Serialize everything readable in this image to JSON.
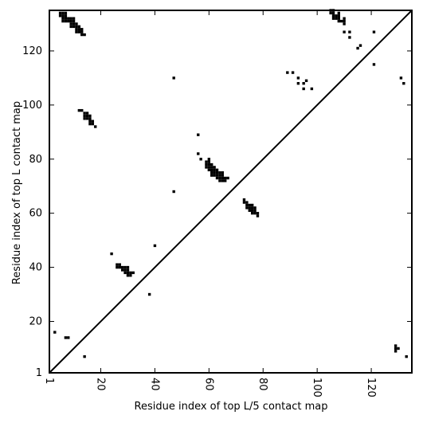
{
  "chart_data": {
    "type": "heatmap",
    "title": "",
    "xlabel": "Residue index of top L/5 contact map",
    "ylabel": "Residue index of top L contact map",
    "xlim": [
      1,
      135
    ],
    "ylim": [
      1,
      135
    ],
    "xticks": [
      1,
      20,
      40,
      60,
      80,
      100,
      120
    ],
    "yticks": [
      1,
      20,
      40,
      60,
      80,
      100,
      120
    ],
    "diagonal": true,
    "colors": {
      "contact": "#000000",
      "background": "#ffffff",
      "axis": "#000000"
    },
    "upper_contacts": [
      [
        5,
        134
      ],
      [
        6,
        134
      ],
      [
        7,
        134
      ],
      [
        5,
        133
      ],
      [
        6,
        133
      ],
      [
        7,
        133
      ],
      [
        6,
        132
      ],
      [
        7,
        132
      ],
      [
        8,
        132
      ],
      [
        9,
        132
      ],
      [
        10,
        132
      ],
      [
        6,
        131
      ],
      [
        7,
        131
      ],
      [
        8,
        131
      ],
      [
        9,
        131
      ],
      [
        10,
        131
      ],
      [
        9,
        130
      ],
      [
        10,
        130
      ],
      [
        11,
        130
      ],
      [
        9,
        129
      ],
      [
        10,
        129
      ],
      [
        11,
        129
      ],
      [
        12,
        129
      ],
      [
        11,
        128
      ],
      [
        12,
        128
      ],
      [
        13,
        128
      ],
      [
        11,
        127
      ],
      [
        12,
        127
      ],
      [
        13,
        127
      ],
      [
        13,
        126
      ],
      [
        14,
        126
      ],
      [
        47,
        110
      ],
      [
        12,
        98
      ],
      [
        13,
        98
      ],
      [
        14,
        97
      ],
      [
        15,
        97
      ],
      [
        14,
        96
      ],
      [
        15,
        96
      ],
      [
        16,
        96
      ],
      [
        14,
        95
      ],
      [
        15,
        95
      ],
      [
        16,
        95
      ],
      [
        16,
        94
      ],
      [
        17,
        94
      ],
      [
        16,
        93
      ],
      [
        17,
        93
      ],
      [
        18,
        92
      ],
      [
        56,
        89
      ],
      [
        56,
        82
      ],
      [
        57,
        80
      ],
      [
        60,
        80
      ],
      [
        59,
        79
      ],
      [
        60,
        79
      ],
      [
        59,
        78
      ],
      [
        60,
        78
      ],
      [
        61,
        78
      ],
      [
        59,
        77
      ],
      [
        60,
        77
      ],
      [
        61,
        77
      ],
      [
        62,
        77
      ],
      [
        60,
        76
      ],
      [
        61,
        76
      ],
      [
        62,
        76
      ],
      [
        63,
        76
      ],
      [
        61,
        75
      ],
      [
        62,
        75
      ],
      [
        63,
        75
      ],
      [
        64,
        75
      ],
      [
        65,
        75
      ],
      [
        61,
        74
      ],
      [
        62,
        74
      ],
      [
        63,
        74
      ],
      [
        64,
        74
      ],
      [
        65,
        74
      ],
      [
        63,
        73
      ],
      [
        64,
        73
      ],
      [
        65,
        73
      ],
      [
        66,
        73
      ],
      [
        67,
        73
      ],
      [
        64,
        72
      ],
      [
        65,
        72
      ],
      [
        66,
        72
      ],
      [
        47,
        68
      ],
      [
        73,
        65
      ],
      [
        73,
        64
      ],
      [
        74,
        64
      ],
      [
        74,
        63
      ],
      [
        75,
        63
      ],
      [
        76,
        63
      ],
      [
        74,
        62
      ],
      [
        75,
        62
      ],
      [
        76,
        62
      ],
      [
        77,
        62
      ],
      [
        75,
        61
      ],
      [
        76,
        61
      ],
      [
        77,
        61
      ],
      [
        76,
        60
      ],
      [
        77,
        60
      ],
      [
        78,
        60
      ],
      [
        78,
        59
      ],
      [
        89,
        112
      ],
      [
        91,
        112
      ],
      [
        93,
        110
      ],
      [
        93,
        108
      ],
      [
        95,
        108
      ],
      [
        96,
        109
      ],
      [
        95,
        106
      ],
      [
        98,
        106
      ],
      [
        105,
        135
      ],
      [
        106,
        135
      ],
      [
        105,
        134
      ],
      [
        106,
        134
      ],
      [
        108,
        134
      ],
      [
        106,
        133
      ],
      [
        107,
        133
      ],
      [
        108,
        133
      ],
      [
        106,
        132
      ],
      [
        107,
        132
      ],
      [
        108,
        132
      ],
      [
        110,
        132
      ],
      [
        108,
        131
      ],
      [
        109,
        131
      ],
      [
        110,
        131
      ],
      [
        110,
        130
      ],
      [
        110,
        127
      ],
      [
        112,
        127
      ],
      [
        112,
        125
      ],
      [
        115,
        121
      ],
      [
        116,
        122
      ],
      [
        121,
        127
      ],
      [
        121,
        115
      ],
      [
        131,
        110
      ],
      [
        132,
        108
      ]
    ],
    "lower_contacts": [
      [
        24,
        45
      ],
      [
        26,
        41
      ],
      [
        27,
        41
      ],
      [
        26,
        40
      ],
      [
        27,
        40
      ],
      [
        28,
        40
      ],
      [
        29,
        40
      ],
      [
        30,
        40
      ],
      [
        28,
        39
      ],
      [
        29,
        39
      ],
      [
        30,
        39
      ],
      [
        29,
        38
      ],
      [
        30,
        38
      ],
      [
        31,
        38
      ],
      [
        32,
        38
      ],
      [
        30,
        37
      ],
      [
        31,
        37
      ],
      [
        38,
        30
      ],
      [
        40,
        48
      ],
      [
        3,
        16
      ],
      [
        7,
        14
      ],
      [
        8,
        14
      ],
      [
        14,
        7
      ],
      [
        129,
        11
      ],
      [
        129,
        10
      ],
      [
        130,
        10
      ],
      [
        129,
        9
      ],
      [
        133,
        7
      ]
    ]
  }
}
